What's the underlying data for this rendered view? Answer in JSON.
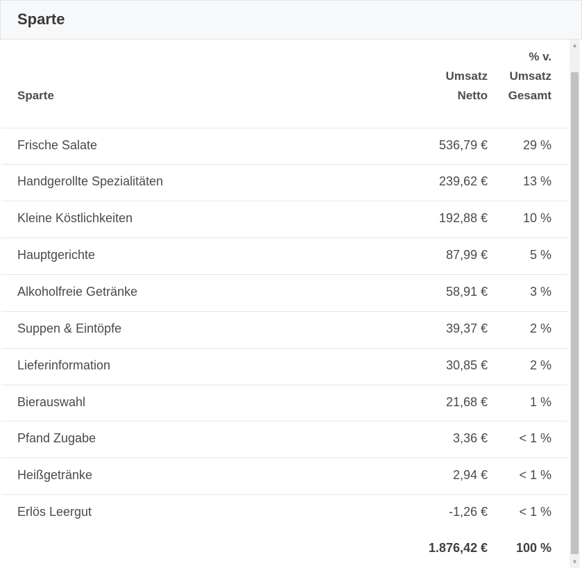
{
  "panel": {
    "title": "Sparte"
  },
  "table": {
    "headers": {
      "sparte": "Sparte",
      "umsatz_line1": "Umsatz",
      "umsatz_line2": "Netto",
      "pct_line1": "% v.",
      "pct_line2": "Umsatz",
      "pct_line3": "Gesamt"
    },
    "rows": [
      {
        "name": "Frische Salate",
        "umsatz": "536,79 €",
        "pct": "29 %"
      },
      {
        "name": "Handgerollte Spezialitäten",
        "umsatz": "239,62 €",
        "pct": "13 %"
      },
      {
        "name": "Kleine Köstlichkeiten",
        "umsatz": "192,88 €",
        "pct": "10 %"
      },
      {
        "name": "Hauptgerichte",
        "umsatz": "87,99 €",
        "pct": "5 %"
      },
      {
        "name": "Alkoholfreie Getränke",
        "umsatz": "58,91 €",
        "pct": "3 %"
      },
      {
        "name": "Suppen & Eintöpfe",
        "umsatz": "39,37 €",
        "pct": "2 %"
      },
      {
        "name": "Lieferinformation",
        "umsatz": "30,85 €",
        "pct": "2 %"
      },
      {
        "name": "Bierauswahl",
        "umsatz": "21,68 €",
        "pct": "1 %"
      },
      {
        "name": "Pfand Zugabe",
        "umsatz": "3,36 €",
        "pct": "< 1 %"
      },
      {
        "name": "Heißgetränke",
        "umsatz": "2,94 €",
        "pct": "< 1 %"
      },
      {
        "name": "Erlös Leergut",
        "umsatz": "-1,26 €",
        "pct": "< 1 %"
      }
    ],
    "total": {
      "umsatz": "1.876,42 €",
      "pct": "100 %"
    }
  },
  "scrollbar": {
    "up_icon": "▲",
    "down_icon": "▼"
  }
}
